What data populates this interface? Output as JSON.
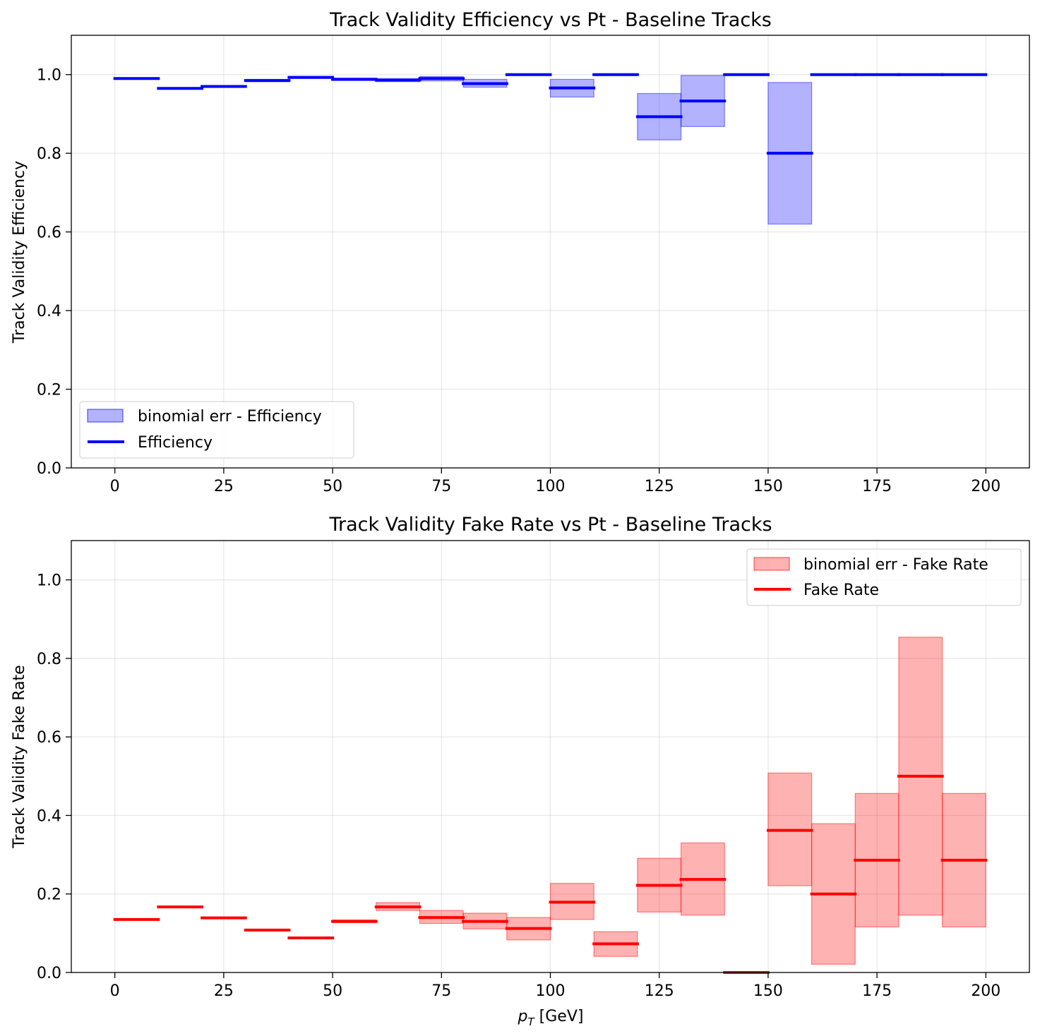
{
  "chart_data": [
    {
      "type": "bar",
      "title": "Track Validity Efficiency vs Pt - Baseline Tracks",
      "xlabel": "",
      "ylabel": "Track Validity Efficiency",
      "xlim": [
        -10,
        210
      ],
      "ylim": [
        0,
        1.1
      ],
      "xticks": [
        0,
        25,
        50,
        75,
        100,
        125,
        150,
        175,
        200
      ],
      "yticks": [
        0.0,
        0.2,
        0.4,
        0.6,
        0.8,
        1.0
      ],
      "grid": true,
      "legend_position": "lower-left",
      "bin_edges": [
        0,
        10,
        20,
        30,
        40,
        50,
        60,
        70,
        80,
        90,
        100,
        110,
        120,
        130,
        140,
        150,
        160,
        170,
        180,
        190,
        200
      ],
      "series": [
        {
          "name": "Efficiency",
          "kind": "step-line",
          "color": "#0000ff",
          "values": [
            0.99,
            0.965,
            0.97,
            0.985,
            0.993,
            0.988,
            0.986,
            0.99,
            0.977,
            1.0,
            0.966,
            1.0,
            0.893,
            0.933,
            1.0,
            0.8,
            1.0,
            1.0,
            1.0,
            1.0
          ]
        },
        {
          "name": "binomial err - Efficiency",
          "kind": "error-band",
          "color": "#0000ff",
          "low": [
            0.988,
            0.963,
            0.968,
            0.982,
            0.99,
            0.985,
            0.982,
            0.984,
            0.968,
            1.0,
            0.943,
            1.0,
            0.834,
            0.868,
            1.0,
            0.62,
            1.0,
            1.0,
            1.0,
            1.0
          ],
          "high": [
            0.992,
            0.967,
            0.972,
            0.988,
            0.995,
            0.991,
            0.99,
            0.995,
            0.988,
            1.0,
            0.988,
            1.0,
            0.952,
            0.998,
            1.0,
            0.98,
            1.0,
            1.0,
            1.0,
            1.0
          ]
        }
      ]
    },
    {
      "type": "bar",
      "title": "Track Validity Fake Rate vs Pt - Baseline Tracks",
      "xlabel": "p_T [GeV]",
      "xlabel_main": "p",
      "xlabel_sub": "T",
      "xlabel_unit": " [GeV]",
      "ylabel": "Track Validity Fake Rate",
      "xlim": [
        -10,
        210
      ],
      "ylim": [
        0,
        1.1
      ],
      "xticks": [
        0,
        25,
        50,
        75,
        100,
        125,
        150,
        175,
        200
      ],
      "yticks": [
        0.0,
        0.2,
        0.4,
        0.6,
        0.8,
        1.0
      ],
      "grid": true,
      "legend_position": "upper-right",
      "bin_edges": [
        0,
        10,
        20,
        30,
        40,
        50,
        60,
        70,
        80,
        90,
        100,
        110,
        120,
        130,
        140,
        150,
        160,
        170,
        180,
        190,
        200
      ],
      "series": [
        {
          "name": "Fake Rate",
          "kind": "step-line",
          "color": "#ff0000",
          "values": [
            0.135,
            0.167,
            0.139,
            0.108,
            0.088,
            0.13,
            0.167,
            0.14,
            0.13,
            0.112,
            0.179,
            0.073,
            0.222,
            0.237,
            0.0,
            0.362,
            0.2,
            0.286,
            0.5,
            0.286
          ]
        },
        {
          "name": "binomial err - Fake Rate",
          "kind": "error-band",
          "color": "#ff0000",
          "low": [
            0.133,
            0.165,
            0.137,
            0.106,
            0.086,
            0.127,
            0.158,
            0.125,
            0.111,
            0.083,
            0.135,
            0.041,
            0.154,
            0.146,
            0.0,
            0.221,
            0.021,
            0.116,
            0.146,
            0.116
          ],
          "high": [
            0.137,
            0.169,
            0.141,
            0.11,
            0.09,
            0.134,
            0.178,
            0.158,
            0.151,
            0.14,
            0.227,
            0.104,
            0.291,
            0.33,
            0.0,
            0.508,
            0.379,
            0.456,
            0.854,
            0.456
          ]
        }
      ]
    }
  ]
}
